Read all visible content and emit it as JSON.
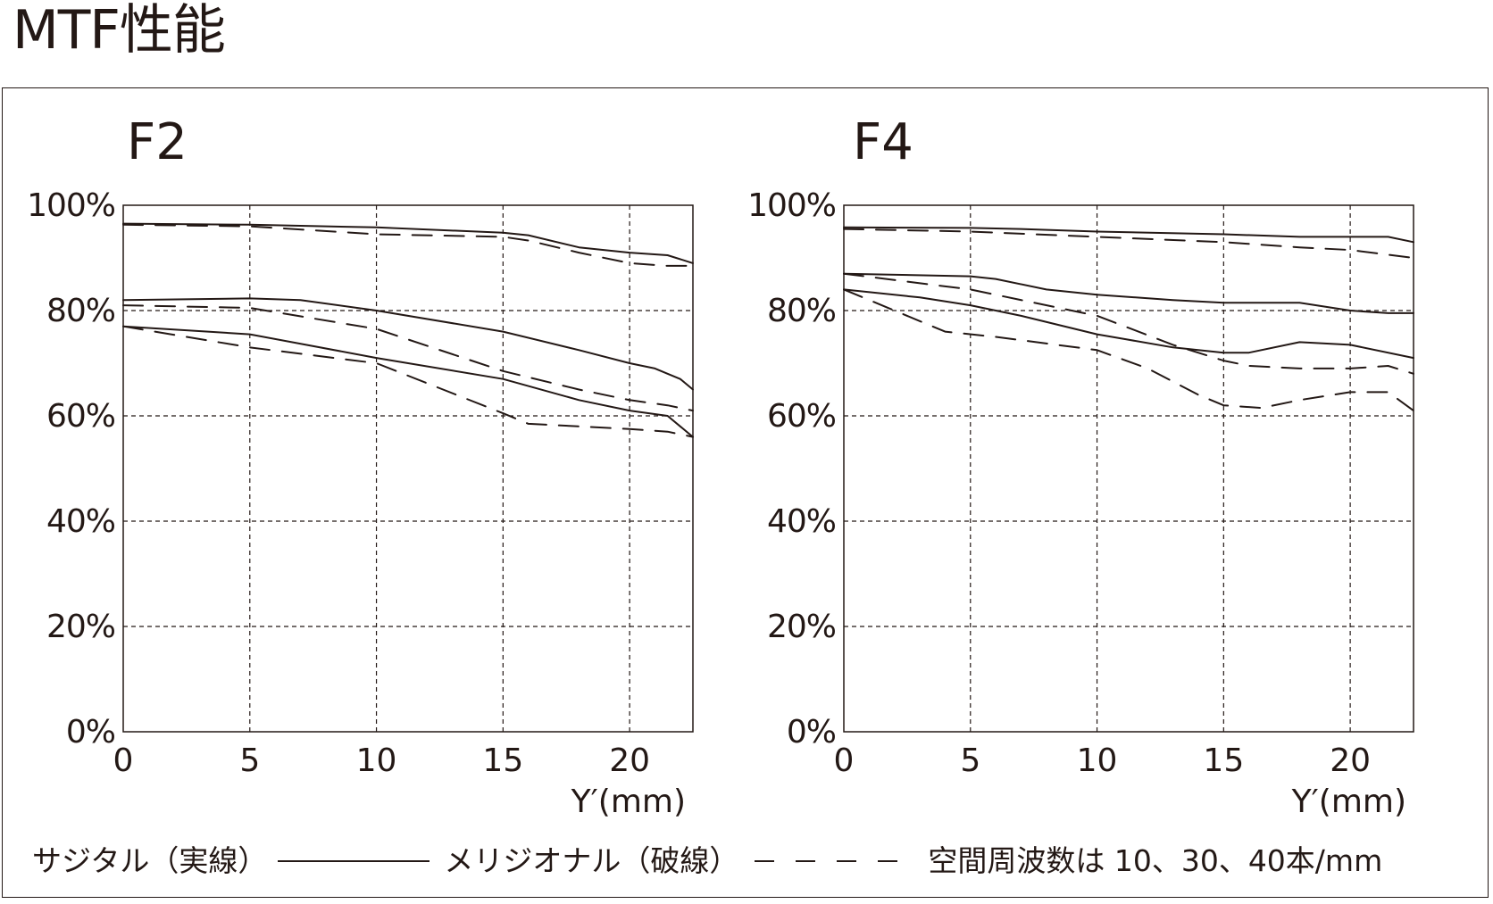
{
  "page": {
    "title": "MTF性能"
  },
  "legend": {
    "sagittal": "サジタル（実線）",
    "meridional": "メリジオナル（破線）",
    "frequency": "空間周波数は 10、30、40本/mm"
  },
  "colors": {
    "ink": "#231815",
    "background": "#ffffff"
  },
  "chart_data": [
    {
      "type": "line",
      "title": "F2",
      "xlabel": "Y′(mm)",
      "ylabel": "",
      "xlim": [
        0,
        22.5
      ],
      "ylim": [
        0,
        100
      ],
      "xticks": [
        0,
        5,
        10,
        15,
        20
      ],
      "yticks": [
        0,
        20,
        40,
        60,
        80,
        100
      ],
      "xtick_labels": [
        "0",
        "5",
        "10",
        "15",
        "20"
      ],
      "ytick_labels": [
        "0%",
        "20%",
        "40%",
        "60%",
        "80%",
        "100%"
      ],
      "grid": true,
      "series": [
        {
          "style": "solid",
          "x": [
            0,
            5,
            10,
            15,
            16,
            18,
            20,
            21.5,
            22.5
          ],
          "y": [
            96.5,
            96.3,
            95.8,
            94.8,
            94.3,
            92,
            91,
            90.5,
            89
          ]
        },
        {
          "style": "dashed",
          "x": [
            0,
            5,
            10,
            15,
            16,
            18,
            20,
            21.5,
            22.5
          ],
          "y": [
            96.3,
            96,
            94.5,
            94,
            93.3,
            91,
            89,
            88.5,
            88.5
          ]
        },
        {
          "style": "solid",
          "x": [
            0,
            5,
            7,
            10,
            15,
            18,
            20,
            21,
            21.5,
            22,
            22.5
          ],
          "y": [
            82,
            82.3,
            82,
            80,
            76,
            72.5,
            70,
            69,
            68,
            67,
            65
          ]
        },
        {
          "style": "dashed",
          "x": [
            0,
            5,
            10,
            15,
            18,
            20,
            21.5,
            22.5
          ],
          "y": [
            81,
            80.5,
            76.5,
            68.5,
            65,
            63,
            62,
            61
          ]
        },
        {
          "style": "solid",
          "x": [
            0,
            5,
            10,
            15,
            18,
            20,
            21.5,
            22,
            22.5
          ],
          "y": [
            77,
            75.5,
            71,
            67,
            63,
            61,
            60,
            58,
            56
          ]
        },
        {
          "style": "dashed",
          "x": [
            0,
            5,
            10,
            15,
            16,
            18,
            20,
            21.5,
            22.5
          ],
          "y": [
            77,
            73,
            70,
            60.5,
            58.5,
            58,
            57.5,
            57,
            56
          ]
        }
      ]
    },
    {
      "type": "line",
      "title": "F4",
      "xlabel": "Y′(mm)",
      "ylabel": "",
      "xlim": [
        0,
        22.5
      ],
      "ylim": [
        0,
        100
      ],
      "xticks": [
        0,
        5,
        10,
        15,
        20
      ],
      "yticks": [
        0,
        20,
        40,
        60,
        80,
        100
      ],
      "xtick_labels": [
        "0",
        "5",
        "10",
        "15",
        "20"
      ],
      "ytick_labels": [
        "0%",
        "20%",
        "40%",
        "60%",
        "80%",
        "100%"
      ],
      "grid": true,
      "series": [
        {
          "style": "solid",
          "x": [
            0,
            5,
            7,
            10,
            15,
            18,
            20,
            21.5,
            22.5
          ],
          "y": [
            95.8,
            95.7,
            95.5,
            95,
            94.5,
            94,
            94,
            94,
            93
          ]
        },
        {
          "style": "dashed",
          "x": [
            0,
            5,
            10,
            15,
            18,
            20,
            22.5
          ],
          "y": [
            95.5,
            95,
            94,
            93,
            92,
            91.5,
            90
          ]
        },
        {
          "style": "solid",
          "x": [
            0,
            5,
            6,
            8,
            10,
            13,
            15,
            18,
            20,
            21.5,
            22.5
          ],
          "y": [
            87,
            86.5,
            86,
            84,
            83,
            82,
            81.5,
            81.5,
            80,
            79.5,
            79.5
          ]
        },
        {
          "style": "dashed",
          "x": [
            0,
            5,
            10,
            13,
            15,
            16,
            18,
            20,
            21.5,
            22.5
          ],
          "y": [
            87,
            84,
            79,
            73.5,
            70.5,
            69.5,
            69,
            69,
            69.5,
            68
          ]
        },
        {
          "style": "solid",
          "x": [
            0,
            3,
            5,
            7,
            10,
            13,
            15,
            16,
            18,
            20,
            22.5
          ],
          "y": [
            84,
            82.5,
            81,
            79,
            75.5,
            73,
            72,
            72,
            74,
            73.5,
            71
          ]
        },
        {
          "style": "dashed",
          "x": [
            0,
            2,
            4,
            6,
            10,
            12,
            14,
            15,
            16.5,
            18,
            20,
            21.5,
            22.5
          ],
          "y": [
            84,
            80,
            76,
            75,
            72.5,
            69,
            64,
            62,
            61.5,
            63,
            64.5,
            64.5,
            61
          ]
        }
      ]
    }
  ]
}
